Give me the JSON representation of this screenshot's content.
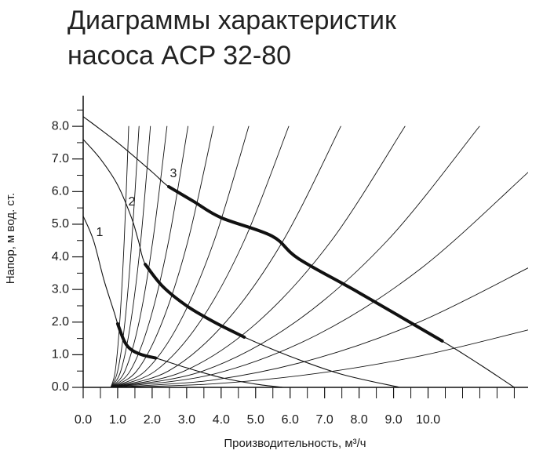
{
  "chart_data": {
    "type": "line",
    "title": [
      "Диаграммы характеристик",
      "насоса ACP 32-80"
    ],
    "x_label": "Производительность, м³/ч",
    "y_label": "Напор, м вод. ст.",
    "xlim": [
      0,
      12.9
    ],
    "ylim": [
      0,
      8.94
    ],
    "xticks": [
      {
        "value": 0,
        "label": "0.0"
      },
      {
        "value": 1,
        "label": "1.0"
      },
      {
        "value": 2,
        "label": "2.0"
      },
      {
        "value": 3,
        "label": "3.0"
      },
      {
        "value": 4,
        "label": "4.0"
      },
      {
        "value": 5,
        "label": "5.0"
      },
      {
        "value": 6,
        "label": "6.0"
      },
      {
        "value": 7,
        "label": "7.0"
      },
      {
        "value": 8,
        "label": "8.0"
      },
      {
        "value": 9,
        "label": "9.0"
      },
      {
        "value": 10,
        "label": "10.0"
      }
    ],
    "xminor_ticks": [
      0.5,
      1.5,
      2.5,
      3.5,
      4.5,
      5.5,
      6.5,
      7.5,
      8.5,
      9.5,
      10.5,
      11,
      11.5,
      12,
      12.5
    ],
    "yticks": [
      {
        "value": 0,
        "label": "0.0"
      },
      {
        "value": 1,
        "label": "1.0"
      },
      {
        "value": 2,
        "label": "2.0"
      },
      {
        "value": 3,
        "label": "3.0"
      },
      {
        "value": 4,
        "label": "4.0"
      },
      {
        "value": 5,
        "label": "5.0"
      },
      {
        "value": 6,
        "label": "6.0"
      },
      {
        "value": 7,
        "label": "7.0"
      },
      {
        "value": 8,
        "label": "8.0"
      }
    ],
    "yminor_ticks": [
      0.5,
      1.5,
      2.5,
      3.5,
      4.5,
      5.5,
      6.5,
      7.5,
      8.5
    ],
    "color": "#111111",
    "pump_curves": [
      {
        "name": "1",
        "x": [
          0,
          0.3,
          0.6,
          0.9,
          1.0,
          1.2,
          1.4,
          1.7,
          2.1,
          3,
          4,
          5,
          5.8
        ],
        "values": [
          5.25,
          4.5,
          3.3,
          2.3,
          1.95,
          1.4,
          1.15,
          1.0,
          0.9,
          0.6,
          0.3,
          0.1,
          0
        ],
        "working_x": [
          1.0,
          1.2,
          1.4,
          1.7,
          2.1
        ],
        "working_values": [
          1.95,
          1.4,
          1.15,
          1.0,
          0.9
        ]
      },
      {
        "name": "2",
        "x": [
          0,
          0.5,
          1.0,
          1.4,
          1.6,
          1.8,
          2.3,
          3.0,
          3.8,
          4.67,
          6,
          7.5,
          9.18
        ],
        "values": [
          7.6,
          7.0,
          6.2,
          5.2,
          4.5,
          3.77,
          3.1,
          2.5,
          2.0,
          1.54,
          0.95,
          0.4,
          0
        ],
        "working_x": [
          1.8,
          2.3,
          3.0,
          3.8,
          4.67
        ],
        "working_values": [
          3.77,
          3.1,
          2.5,
          2.0,
          1.54
        ]
      },
      {
        "name": "3",
        "x": [
          0,
          1,
          2,
          2.48,
          3.2,
          4.0,
          5.47,
          6.25,
          8.0,
          10.41,
          11.5,
          12.5
        ],
        "values": [
          8.3,
          7.5,
          6.6,
          6.15,
          5.7,
          5.2,
          4.64,
          3.94,
          2.9,
          1.42,
          0.7,
          0
        ],
        "working_x": [
          2.48,
          3.2,
          4.0,
          5.47,
          6.25,
          8.0,
          10.41
        ],
        "working_values": [
          6.15,
          5.7,
          5.2,
          4.64,
          3.94,
          2.9,
          1.42
        ]
      }
    ],
    "system_curves": [
      {
        "x": [
          0.8,
          0.93,
          1.06,
          1.19,
          1.32
        ],
        "values": [
          0,
          0.5,
          2,
          4.5,
          8
        ]
      },
      {
        "x": [
          0.8,
          1.0,
          1.21,
          1.41,
          1.62
        ],
        "values": [
          0,
          0.5,
          2,
          4.5,
          8
        ]
      },
      {
        "x": [
          0.8,
          1.09,
          1.38,
          1.67,
          1.95
        ],
        "values": [
          0,
          0.5,
          2,
          4.5,
          8
        ]
      },
      {
        "x": [
          0.8,
          1.21,
          1.62,
          2.02,
          2.43
        ],
        "values": [
          0,
          0.5,
          2,
          4.5,
          8
        ]
      },
      {
        "x": [
          0.8,
          1.36,
          1.92,
          2.48,
          3.04
        ],
        "values": [
          0,
          0.5,
          2,
          4.5,
          8
        ]
      },
      {
        "x": [
          0.8,
          1.55,
          2.29,
          3.04,
          3.78
        ],
        "values": [
          0,
          0.5,
          2,
          4.5,
          8
        ]
      },
      {
        "x": [
          0.8,
          1.8,
          2.8,
          3.8,
          4.8
        ],
        "values": [
          0,
          0.5,
          2,
          4.5,
          8
        ]
      },
      {
        "x": [
          0.8,
          2.09,
          3.38,
          4.67,
          5.96
        ],
        "values": [
          0,
          0.5,
          2,
          4.5,
          8
        ]
      },
      {
        "x": [
          0.8,
          2.47,
          4.13,
          5.8,
          7.47
        ],
        "values": [
          0,
          0.5,
          2,
          4.5,
          8
        ]
      },
      {
        "x": [
          0.8,
          2.93,
          5.06,
          7.2,
          9.33
        ],
        "values": [
          0,
          0.5,
          2,
          4.5,
          8
        ]
      },
      {
        "x": [
          0.8,
          3.47,
          6.15,
          8.82,
          11.49
        ],
        "values": [
          0,
          0.5,
          2,
          4.5,
          8
        ]
      },
      {
        "x": [
          0.8,
          3.8,
          6.8,
          9.8,
          12.9
        ],
        "values": [
          0,
          0.41,
          1.62,
          3.65,
          6.59
        ]
      },
      {
        "x": [
          0.8,
          3.8,
          6.8,
          9.8,
          12.9
        ],
        "values": [
          0,
          0.23,
          0.9,
          2.03,
          3.66
        ]
      },
      {
        "x": [
          0.8,
          3.8,
          6.8,
          9.8,
          12.9
        ],
        "values": [
          0,
          0.11,
          0.43,
          0.97,
          1.76
        ]
      }
    ]
  }
}
